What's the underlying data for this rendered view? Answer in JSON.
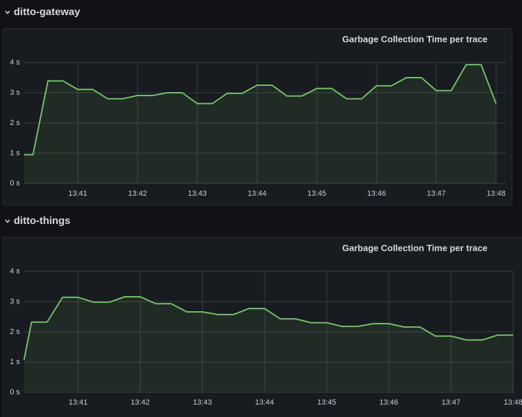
{
  "rows": [
    {
      "title": "ditto-gateway"
    },
    {
      "title": "ditto-things"
    }
  ],
  "chart_data": [
    {
      "type": "line",
      "title": "Garbage Collection Time per trace",
      "color": "#73bf69",
      "grid": true,
      "x": [
        40.1,
        40.25,
        40.5,
        40.75,
        41,
        41.25,
        41.5,
        41.75,
        42,
        42.25,
        42.5,
        42.75,
        43,
        43.25,
        43.5,
        43.75,
        44,
        44.25,
        44.5,
        44.75,
        45,
        45.25,
        45.5,
        45.75,
        46,
        46.25,
        46.5,
        46.75,
        47,
        47.25,
        47.5,
        47.75,
        48
      ],
      "values": [
        0.95,
        0.95,
        3.39,
        3.39,
        3.11,
        3.11,
        2.8,
        2.8,
        2.91,
        2.91,
        3.0,
        3.0,
        2.64,
        2.64,
        2.98,
        2.98,
        3.25,
        3.25,
        2.89,
        2.89,
        3.14,
        3.14,
        2.8,
        2.8,
        3.23,
        3.23,
        3.5,
        3.5,
        3.07,
        3.07,
        3.93,
        3.93,
        2.64
      ],
      "xlim": [
        40.1,
        48.17
      ],
      "xticks": [
        {
          "value": 41,
          "label": "13:41"
        },
        {
          "value": 42,
          "label": "13:42"
        },
        {
          "value": 43,
          "label": "13:43"
        },
        {
          "value": 44,
          "label": "13:44"
        },
        {
          "value": 45,
          "label": "13:45"
        },
        {
          "value": 46,
          "label": "13:46"
        },
        {
          "value": 47,
          "label": "13:47"
        },
        {
          "value": 48,
          "label": "13:48"
        }
      ],
      "ylim": [
        0,
        4
      ],
      "yticks": [
        {
          "value": 0,
          "label": "0 s"
        },
        {
          "value": 1,
          "label": "1 s"
        },
        {
          "value": 2,
          "label": "2 s"
        },
        {
          "value": 3,
          "label": "3 s"
        },
        {
          "value": 4,
          "label": "4 s"
        }
      ]
    },
    {
      "type": "line",
      "title": "Garbage Collection Time per trace",
      "color": "#73bf69",
      "grid": true,
      "x": [
        40.13,
        40.25,
        40.5,
        40.75,
        41,
        41.25,
        41.5,
        41.75,
        42,
        42.25,
        42.5,
        42.75,
        43,
        43.25,
        43.5,
        43.75,
        44,
        44.25,
        44.5,
        44.75,
        45,
        45.25,
        45.5,
        45.75,
        46,
        46.25,
        46.5,
        46.75,
        47,
        47.25,
        47.5,
        47.75,
        48
      ],
      "values": [
        1.07,
        2.32,
        2.32,
        3.14,
        3.14,
        2.98,
        2.98,
        3.16,
        3.16,
        2.93,
        2.93,
        2.66,
        2.66,
        2.57,
        2.57,
        2.77,
        2.77,
        2.43,
        2.43,
        2.3,
        2.3,
        2.18,
        2.18,
        2.27,
        2.27,
        2.16,
        2.16,
        1.86,
        1.86,
        1.73,
        1.73,
        1.89,
        1.89
      ],
      "xlim": [
        40.13,
        48.01
      ],
      "xticks": [
        {
          "value": 41,
          "label": "13:41"
        },
        {
          "value": 42,
          "label": "13:42"
        },
        {
          "value": 43,
          "label": "13:43"
        },
        {
          "value": 44,
          "label": "13:44"
        },
        {
          "value": 45,
          "label": "13:45"
        },
        {
          "value": 46,
          "label": "13:46"
        },
        {
          "value": 47,
          "label": "13:47"
        },
        {
          "value": 48,
          "label": "13:48"
        }
      ],
      "ylim": [
        0,
        4
      ],
      "yticks": [
        {
          "value": 0,
          "label": "0 s"
        },
        {
          "value": 1,
          "label": "1 s"
        },
        {
          "value": 2,
          "label": "2 s"
        },
        {
          "value": 3,
          "label": "3 s"
        },
        {
          "value": 4,
          "label": "4 s"
        }
      ]
    }
  ]
}
